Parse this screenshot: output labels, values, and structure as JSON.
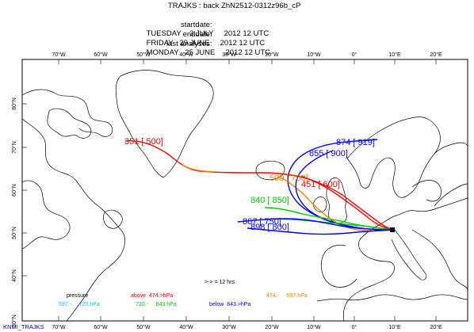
{
  "header": {
    "title": "TRAJKS : back ZhN2512-0312z96b_cP",
    "rows": [
      {
        "key": "startdate:",
        "value": "TUESDAY    3 JULY     2012 12 UTC"
      },
      {
        "key": "enddate:",
        "value": "FRIDAY   29 JUNE     2012 12 UTC"
      },
      {
        "key": "last analyses:",
        "value": "MONDAY   25 JUNE     2012 12 UTC"
      }
    ]
  },
  "axes": {
    "lon_ticks_top": [
      "70°W",
      "60°W",
      "50°W",
      "40°W",
      "30°W",
      "20°W",
      "10°W",
      "0°",
      "10°E",
      "20°E"
    ],
    "lon_ticks_bottom": [
      "70°W",
      "60°W",
      "50°W",
      "40°W",
      "30°W",
      "20°W",
      "10°W",
      "0°",
      "10°E",
      "20°E"
    ],
    "lat_ticks": [
      "80°N",
      "70°N",
      "60°N",
      "50°N",
      "40°N",
      "30°N"
    ]
  },
  "trajectories": [
    {
      "label": "351  [ 500]",
      "color": "#ff0000"
    },
    {
      "label": "590 [ 700]",
      "color": "#ff8000"
    },
    {
      "label": "451 [ 600]",
      "color": "#ff0000"
    },
    {
      "label": "874 [ 919]",
      "color": "#0000ff"
    },
    {
      "label": "855 [ 900]",
      "color": "#0000ff"
    },
    {
      "label": "840 [ 850]",
      "color": "#00cc00"
    },
    {
      "label": "867 [ 750]",
      "color": "#0000ff"
    },
    {
      "label": "898 [ 800]",
      "color": "#0000ff"
    }
  ],
  "legend": {
    "pressure": "pressure",
    "interval": ">-> = 12 hrs.",
    "items": [
      {
        "text": "above  474.>hPa",
        "color": "#ff0000"
      },
      {
        "text": "474.-     597.hPa",
        "color": "#ff8000"
      },
      {
        "text": "597.-     720.hPa",
        "color": "#00c0ff"
      },
      {
        "text": "720.-     843.hPa",
        "color": "#00cc00"
      },
      {
        "text": "below  843.>hPa",
        "color": "#0000ff"
      }
    ]
  },
  "footer": "KNMI_TRAJKS",
  "colors": {
    "coast": "#000000",
    "grid": "#000000",
    "endpoint": "#000000"
  }
}
